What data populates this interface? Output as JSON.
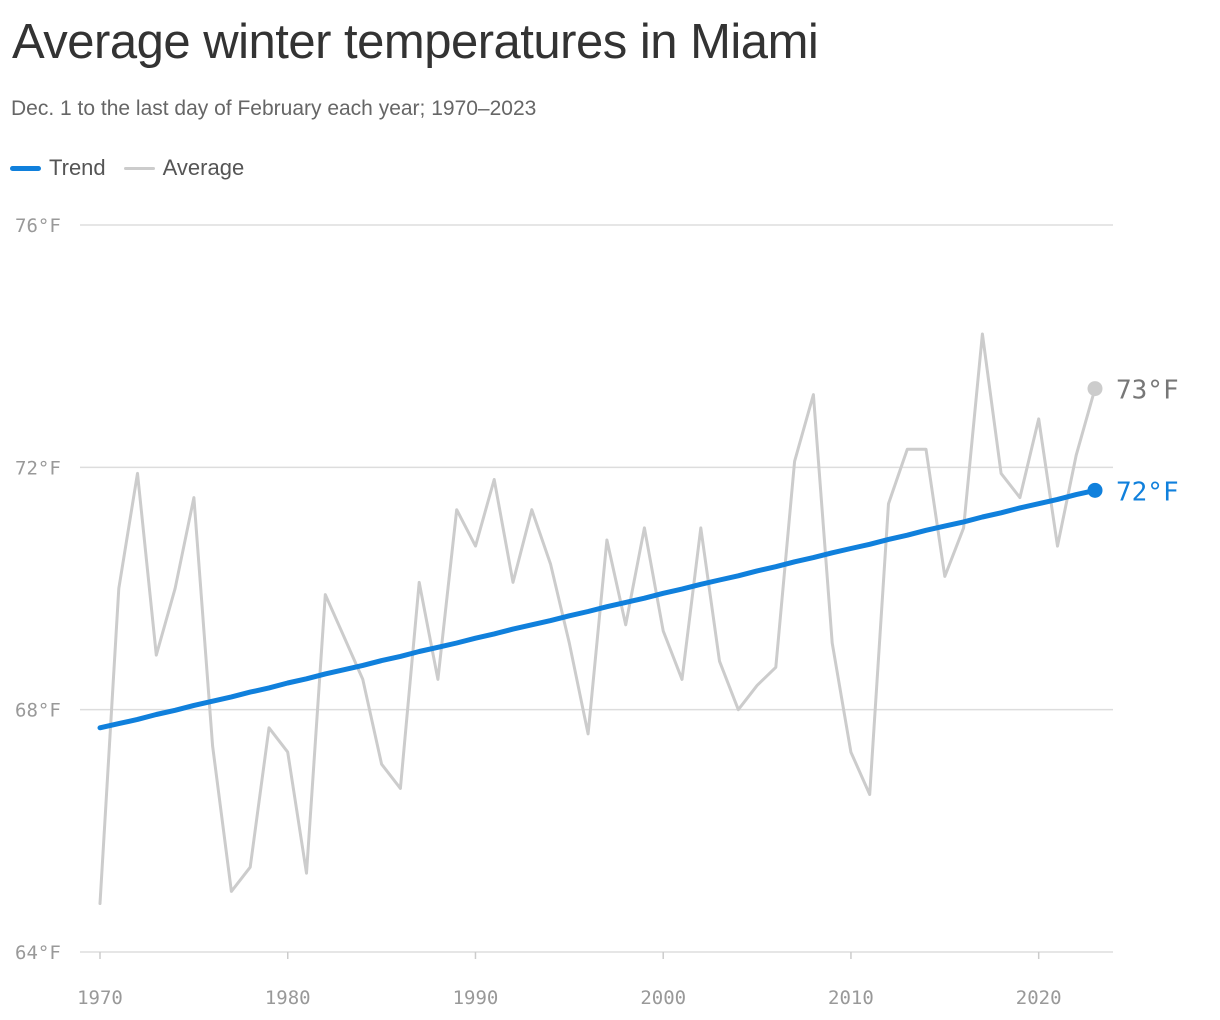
{
  "header": {
    "title": "Average winter temperatures in Miami",
    "subtitle": "Dec. 1 to the last day of February each year; 1970–2023"
  },
  "legend": [
    {
      "label": "Trend",
      "color": "#1080dc"
    },
    {
      "label": "Average",
      "color": "#cccccc"
    }
  ],
  "chart_data": {
    "type": "line",
    "title": "Average winter temperatures in Miami",
    "subtitle": "Dec. 1 to the last day of February each year; 1970–2023",
    "xlabel": "",
    "ylabel": "",
    "x_ticks": [
      1970,
      1980,
      1990,
      2000,
      2010,
      2020
    ],
    "x_tick_labels": [
      "1970",
      "1980",
      "1990",
      "2000",
      "2010",
      "2020"
    ],
    "y_ticks": [
      64,
      68,
      72,
      76
    ],
    "y_tick_labels": [
      "64°F",
      "68°F",
      "72°F",
      "76°F"
    ],
    "xlim": [
      1970,
      2023
    ],
    "ylim": [
      64,
      76
    ],
    "grid": true,
    "legend_position": "top-left",
    "x": [
      1970,
      1971,
      1972,
      1973,
      1974,
      1975,
      1976,
      1977,
      1978,
      1979,
      1980,
      1981,
      1982,
      1983,
      1984,
      1985,
      1986,
      1987,
      1988,
      1989,
      1990,
      1991,
      1992,
      1993,
      1994,
      1995,
      1996,
      1997,
      1998,
      1999,
      2000,
      2001,
      2002,
      2003,
      2004,
      2005,
      2006,
      2007,
      2008,
      2009,
      2010,
      2011,
      2012,
      2013,
      2014,
      2015,
      2016,
      2017,
      2018,
      2019,
      2020,
      2021,
      2022,
      2023
    ],
    "series": [
      {
        "name": "Average",
        "color": "#cccccc",
        "values": [
          64.8,
          70.0,
          71.9,
          68.9,
          70.0,
          71.5,
          67.4,
          65.0,
          65.4,
          67.7,
          67.3,
          65.3,
          69.9,
          69.2,
          68.5,
          67.1,
          66.7,
          70.1,
          68.5,
          71.3,
          70.7,
          71.8,
          70.1,
          71.3,
          70.4,
          69.1,
          67.6,
          70.8,
          69.4,
          71.0,
          69.3,
          68.5,
          71.0,
          68.8,
          68.0,
          68.4,
          68.7,
          72.1,
          73.2,
          69.1,
          67.3,
          66.6,
          71.4,
          72.3,
          72.3,
          70.2,
          71.0,
          74.2,
          71.9,
          71.5,
          72.8,
          70.7,
          72.2,
          73.3
        ]
      },
      {
        "name": "Trend",
        "color": "#1080dc",
        "values": [
          67.7,
          67.77,
          67.84,
          67.92,
          67.99,
          68.07,
          68.14,
          68.21,
          68.29,
          68.36,
          68.44,
          68.51,
          68.59,
          68.66,
          68.73,
          68.81,
          68.88,
          68.96,
          69.03,
          69.1,
          69.18,
          69.25,
          69.33,
          69.4,
          69.47,
          69.55,
          69.62,
          69.7,
          69.77,
          69.84,
          69.92,
          69.99,
          70.07,
          70.14,
          70.21,
          70.29,
          70.36,
          70.44,
          70.51,
          70.59,
          70.66,
          70.73,
          70.81,
          70.88,
          70.96,
          71.03,
          71.1,
          71.18,
          71.25,
          71.33,
          71.4,
          71.47,
          71.55,
          71.62
        ]
      }
    ],
    "end_labels": [
      {
        "series": "Average",
        "text": "73°F"
      },
      {
        "series": "Trend",
        "text": "72°F"
      }
    ]
  }
}
